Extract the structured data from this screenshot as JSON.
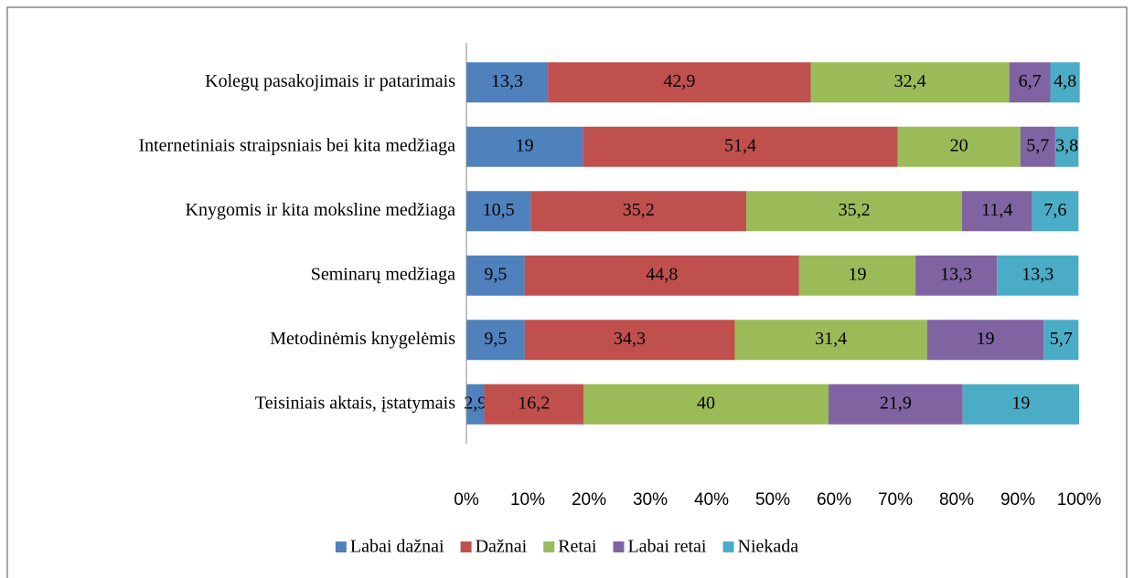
{
  "chart_data": {
    "type": "stacked_bar_horizontal",
    "categories": [
      "Kolegų pasakojimais ir patarimais",
      "Internetiniais straipsniais bei kita medžiaga",
      "Knygomis ir kita moksline medžiaga",
      "Seminarų medžiaga",
      "Metodinėmis knygelėmis",
      "Teisiniais aktais, įstatymais"
    ],
    "series": [
      {
        "name": "Labai dažnai",
        "color": "#4f81bd",
        "values": [
          13.3,
          19,
          10.5,
          9.5,
          9.5,
          2.9
        ],
        "value_labels": [
          "13,3",
          "19",
          "10,5",
          "9,5",
          "9,5",
          "2,9"
        ]
      },
      {
        "name": "Dažnai",
        "color": "#c0504d",
        "values": [
          42.9,
          51.4,
          35.2,
          44.8,
          34.3,
          16.2
        ],
        "value_labels": [
          "42,9",
          "51,4",
          "35,2",
          "44,8",
          "34,3",
          "16,2"
        ]
      },
      {
        "name": "Retai",
        "color": "#9bbb59",
        "values": [
          32.4,
          20,
          35.2,
          19,
          31.4,
          40
        ],
        "value_labels": [
          "32,4",
          "20",
          "35,2",
          "19",
          "31,4",
          "40"
        ]
      },
      {
        "name": "Labai retai",
        "color": "#8064a2",
        "values": [
          6.7,
          5.7,
          11.4,
          13.3,
          19,
          21.9
        ],
        "value_labels": [
          "6,7",
          "5,7",
          "11,4",
          "13,3",
          "19",
          "21,9"
        ]
      },
      {
        "name": "Niekada",
        "color": "#4bacc6",
        "values": [
          4.8,
          3.8,
          7.6,
          13.3,
          5.7,
          19
        ],
        "value_labels": [
          "4,8",
          "3,8",
          "7,6",
          "13,3",
          "5,7",
          "19"
        ]
      }
    ],
    "xlim": [
      0,
      100
    ],
    "xticks": [
      {
        "value": 0,
        "label": "0%"
      },
      {
        "value": 10,
        "label": "10%"
      },
      {
        "value": 20,
        "label": "20%"
      },
      {
        "value": 30,
        "label": "30%"
      },
      {
        "value": 40,
        "label": "40%"
      },
      {
        "value": 50,
        "label": "50%"
      },
      {
        "value": 60,
        "label": "60%"
      },
      {
        "value": 70,
        "label": "70%"
      },
      {
        "value": 80,
        "label": "80%"
      },
      {
        "value": 90,
        "label": "90%"
      },
      {
        "value": 100,
        "label": "100%"
      }
    ],
    "legend": "bottom"
  }
}
